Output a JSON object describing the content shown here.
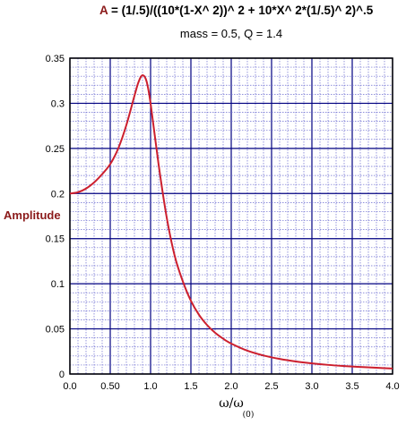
{
  "colors": {
    "accent": "#8b1a1a",
    "curve": "#cc1f2e",
    "major_grid": "#000080",
    "minor_grid": "#6a6ad0",
    "frame": "#000000"
  },
  "chart_data": {
    "type": "line",
    "title_symbol": "A",
    "title_formula": " = (1/.5)/((10*(1-X^ 2))^ 2 + 10*X^ 2*(1/.5)^ 2)^.5",
    "subtitle": "mass = 0.5,  Q = 1.4",
    "ylabel": "Amplitude",
    "xlabel_main": "ω/ω",
    "xlabel_sub": "(0)",
    "xlim": [
      0,
      4
    ],
    "ylim": [
      0,
      0.35
    ],
    "x_ticks": [
      {
        "value": 0,
        "label": "0.0"
      },
      {
        "value": 0.5,
        "label": "0.50"
      },
      {
        "value": 1,
        "label": "1.0"
      },
      {
        "value": 1.5,
        "label": "1.5"
      },
      {
        "value": 2,
        "label": "2.0"
      },
      {
        "value": 2.5,
        "label": "2.5"
      },
      {
        "value": 3,
        "label": "3.0"
      },
      {
        "value": 3.5,
        "label": "3.5"
      },
      {
        "value": 4,
        "label": "4.0"
      }
    ],
    "y_ticks": [
      {
        "value": 0,
        "label": "0"
      },
      {
        "value": 0.05,
        "label": "0.05"
      },
      {
        "value": 0.1,
        "label": "0.1"
      },
      {
        "value": 0.15,
        "label": "0.15"
      },
      {
        "value": 0.2,
        "label": "0.2"
      },
      {
        "value": 0.25,
        "label": "0.25"
      },
      {
        "value": 0.3,
        "label": "0.3"
      },
      {
        "value": 0.35,
        "label": "0.35"
      }
    ],
    "grid": true,
    "x_minor_step": 0.1,
    "y_minor_step": 0.01,
    "series": [
      {
        "x": [
          0,
          0.1,
          0.2,
          0.3,
          0.4,
          0.5,
          0.6,
          0.7,
          0.8,
          0.85,
          0.9,
          0.95,
          1.0,
          1.1,
          1.2,
          1.3,
          1.4,
          1.5,
          1.6,
          1.7,
          1.8,
          1.9,
          2.0,
          2.2,
          2.4,
          2.6,
          2.8,
          3.0,
          3.2,
          3.4,
          3.6,
          3.8,
          4.0
        ],
        "y": [
          0.2,
          0.2014,
          0.2055,
          0.2123,
          0.2215,
          0.2326,
          0.2501,
          0.2759,
          0.3082,
          0.3234,
          0.331,
          0.3244,
          0.3,
          0.2319,
          0.1735,
          0.1306,
          0.1026,
          0.0811,
          0.0656,
          0.0543,
          0.0457,
          0.0391,
          0.0337,
          0.0258,
          0.0205,
          0.0167,
          0.0139,
          0.0118,
          0.0101,
          0.0088,
          0.0078,
          0.0069,
          0.0061
        ]
      }
    ]
  }
}
